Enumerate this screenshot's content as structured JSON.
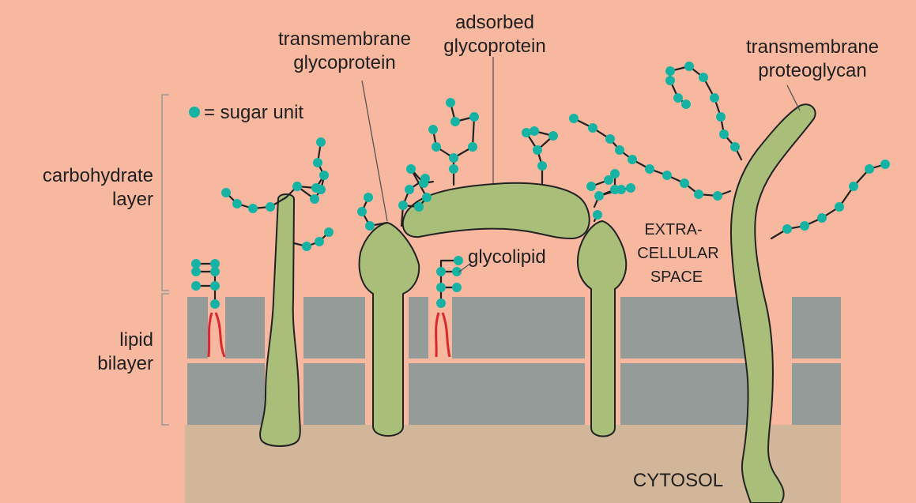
{
  "labels": {
    "transmembrane_glycoprotein": [
      "transmembrane",
      "glycoprotein"
    ],
    "adsorbed_glycoprotein": [
      "adsorbed",
      "glycoprotein"
    ],
    "transmembrane_proteoglycan": [
      "transmembrane",
      "proteoglycan"
    ],
    "sugar_legend": "= sugar unit",
    "carbohydrate_layer": [
      "carbohydrate",
      "layer"
    ],
    "lipid_bilayer": [
      "lipid",
      "bilayer"
    ],
    "glycolipid": "glycolipid",
    "extracellular_space": [
      "EXTRA-",
      "CELLULAR",
      "SPACE"
    ],
    "cytosol": "CYTOSOL"
  },
  "colors": {
    "background": "#f7b89f",
    "cytosol": "#d2b69a",
    "bilayer": "#949b98",
    "protein": "#a9be79",
    "sugar": "#16b3a4",
    "lipid_tail": "#d9282e",
    "line": "#555555"
  }
}
